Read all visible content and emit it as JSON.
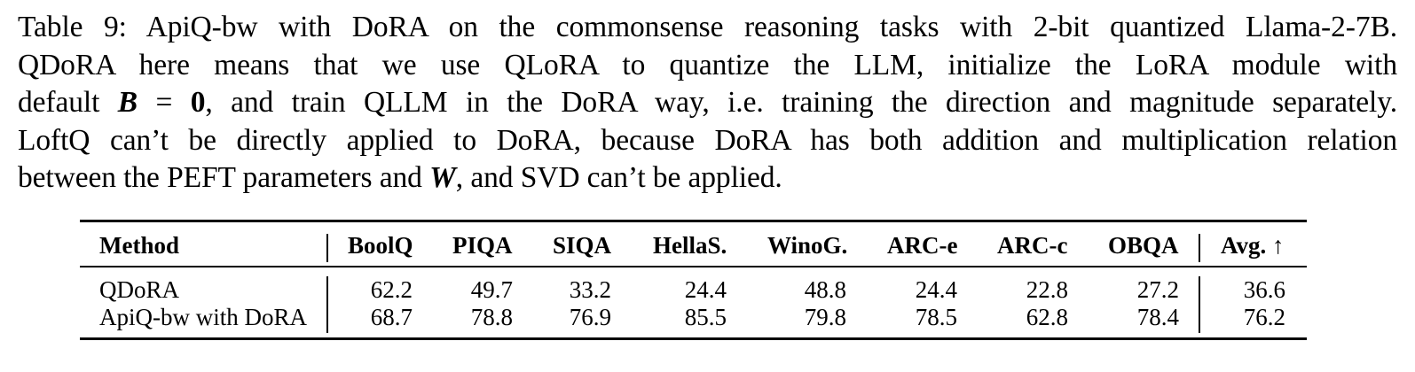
{
  "caption": {
    "line1": "Table 9: ApiQ-bw with DoRA on the commonsense reasoning tasks with 2-bit quantized Llama-2-7B.",
    "line2": "QDoRA here means that we use QLoRA to quantize the LLM, initialize the LoRA module with",
    "line3_pre": "default ",
    "line3_math_var": "B",
    "line3_math_eq": " = ",
    "line3_math_zero": "0",
    "line3_post": ", and train QLLM in the DoRA way, i.e. training the direction and magnitude separately.",
    "line4": "LoftQ can’t be directly applied to DoRA, because DoRA has both addition and multiplication relation",
    "line5_pre": "between the PEFT parameters and ",
    "line5_math_var": "W",
    "line5_post": ", and SVD can’t be applied."
  },
  "table": {
    "headers": [
      "Method",
      "BoolQ",
      "PIQA",
      "SIQA",
      "HellaS.",
      "WinoG.",
      "ARC-e",
      "ARC-c",
      "OBQA",
      "Avg. ↑"
    ],
    "rows": [
      {
        "method": "QDoRA",
        "values": [
          "62.2",
          "49.7",
          "33.2",
          "24.4",
          "48.8",
          "24.4",
          "22.8",
          "27.2",
          "36.6"
        ]
      },
      {
        "method": "ApiQ-bw with DoRA",
        "values": [
          "68.7",
          "78.8",
          "76.9",
          "85.5",
          "79.8",
          "78.5",
          "62.8",
          "78.4",
          "76.2"
        ]
      }
    ]
  }
}
